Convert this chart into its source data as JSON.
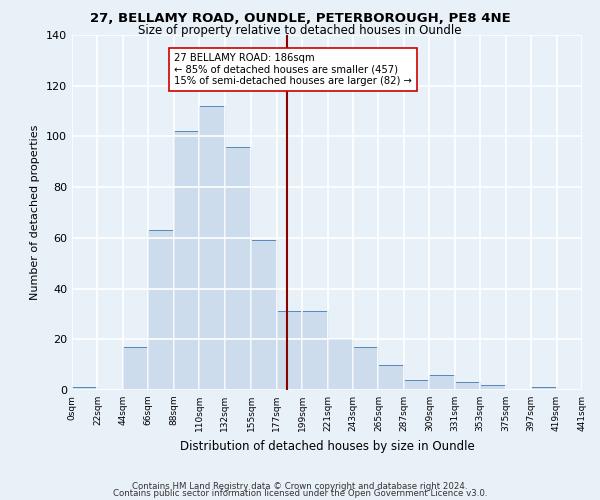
{
  "title1": "27, BELLAMY ROAD, OUNDLE, PETERBOROUGH, PE8 4NE",
  "title2": "Size of property relative to detached houses in Oundle",
  "xlabel": "Distribution of detached houses by size in Oundle",
  "ylabel": "Number of detached properties",
  "bar_color": "#ccdcec",
  "bar_edge_color": "#5588bb",
  "background_color": "#e8f0f8",
  "grid_color": "#ffffff",
  "bin_edges": [
    0,
    22,
    44,
    66,
    88,
    110,
    132,
    155,
    177,
    199,
    221,
    243,
    265,
    287,
    309,
    331,
    353,
    375,
    397,
    419,
    441
  ],
  "bin_labels": [
    "0sqm",
    "22sqm",
    "44sqm",
    "66sqm",
    "88sqm",
    "110sqm",
    "132sqm",
    "155sqm",
    "177sqm",
    "199sqm",
    "221sqm",
    "243sqm",
    "265sqm",
    "287sqm",
    "309sqm",
    "331sqm",
    "353sqm",
    "375sqm",
    "397sqm",
    "419sqm",
    "441sqm"
  ],
  "bar_heights": [
    1,
    0,
    17,
    63,
    102,
    112,
    96,
    59,
    31,
    31,
    20,
    17,
    10,
    4,
    6,
    3,
    2,
    0,
    1,
    0
  ],
  "vline_x": 186,
  "vline_color": "#8b0000",
  "annotation_title": "27 BELLAMY ROAD: 186sqm",
  "annotation_line1": "← 85% of detached houses are smaller (457)",
  "annotation_line2": "15% of semi-detached houses are larger (82) →",
  "annotation_box_color": "#ffffff",
  "annotation_box_edge": "#cc0000",
  "ylim": [
    0,
    140
  ],
  "yticks": [
    0,
    20,
    40,
    60,
    80,
    100,
    120,
    140
  ],
  "footer1": "Contains HM Land Registry data © Crown copyright and database right 2024.",
  "footer2": "Contains public sector information licensed under the Open Government Licence v3.0."
}
